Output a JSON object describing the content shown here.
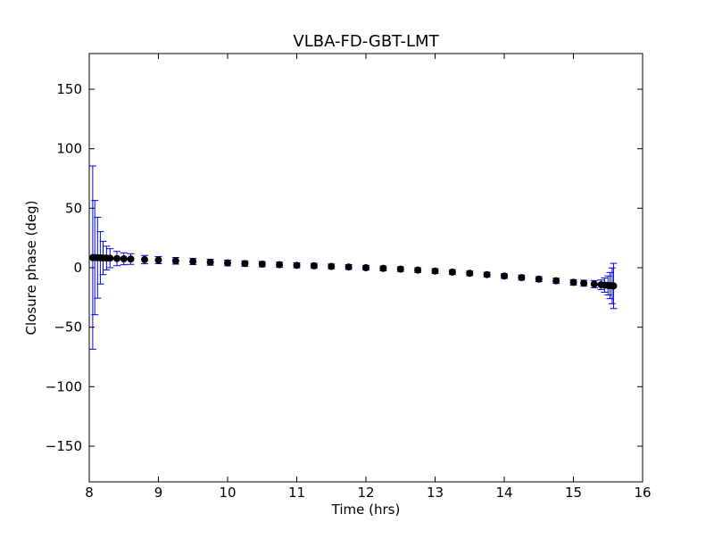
{
  "chart_data": {
    "type": "scatter",
    "title": "VLBA-FD-GBT-LMT",
    "xlabel": "Time (hrs)",
    "ylabel": "Closure phase (deg)",
    "xlim": [
      8,
      16
    ],
    "ylim": [
      -180,
      180
    ],
    "x_ticks": [
      8,
      9,
      10,
      11,
      12,
      13,
      14,
      15,
      16
    ],
    "y_ticks": [
      -150,
      -100,
      -50,
      0,
      50,
      100,
      150
    ],
    "x_tick_labels": [
      "8",
      "9",
      "10",
      "11",
      "12",
      "13",
      "14",
      "15",
      "16"
    ],
    "y_tick_labels": [
      "−150",
      "−100",
      "−50",
      "0",
      "50",
      "100",
      "150"
    ],
    "grid": false,
    "legend": "none",
    "colors": {
      "points": "#000000",
      "error_bars": "#0000ff"
    },
    "series": [
      {
        "x": [
          8.05,
          8.08,
          8.12,
          8.16,
          8.2,
          8.25,
          8.3,
          8.4,
          8.5,
          8.6,
          8.8,
          9.0,
          9.25,
          9.5,
          9.75,
          10.0,
          10.25,
          10.5,
          10.75,
          11.0,
          11.25,
          11.5,
          11.75,
          12.0,
          12.25,
          12.5,
          12.75,
          13.0,
          13.25,
          13.5,
          13.75,
          14.0,
          14.25,
          14.5,
          14.75,
          15.0,
          15.15,
          15.3,
          15.4,
          15.45,
          15.5,
          15.53,
          15.56,
          15.58
        ],
        "y": [
          8.5,
          8.5,
          8.4,
          8.3,
          8.2,
          8.1,
          8.0,
          7.7,
          7.5,
          7.3,
          6.8,
          6.4,
          5.8,
          5.2,
          4.6,
          4.0,
          3.5,
          3.0,
          2.5,
          2.0,
          1.6,
          1.1,
          0.6,
          0.0,
          -0.6,
          -1.2,
          -2.0,
          -2.8,
          -3.7,
          -4.7,
          -5.8,
          -7.0,
          -8.3,
          -9.6,
          -11.0,
          -12.3,
          -13.0,
          -13.8,
          -14.3,
          -14.6,
          -14.9,
          -15.0,
          -15.2,
          -15.3
        ],
        "yerr": [
          77,
          48,
          34,
          22,
          14,
          10,
          8,
          6,
          5,
          4.5,
          3.5,
          3,
          2.8,
          2.6,
          2.5,
          2.4,
          2.3,
          2.2,
          2.2,
          2.1,
          2.1,
          2.0,
          2.0,
          2.0,
          2.0,
          2.0,
          2.0,
          2.0,
          2.0,
          2.0,
          2.0,
          2.0,
          2.1,
          2.1,
          2.2,
          2.3,
          2.5,
          3.0,
          4.0,
          6.0,
          8.0,
          11.0,
          15.0,
          19.0
        ]
      }
    ]
  }
}
